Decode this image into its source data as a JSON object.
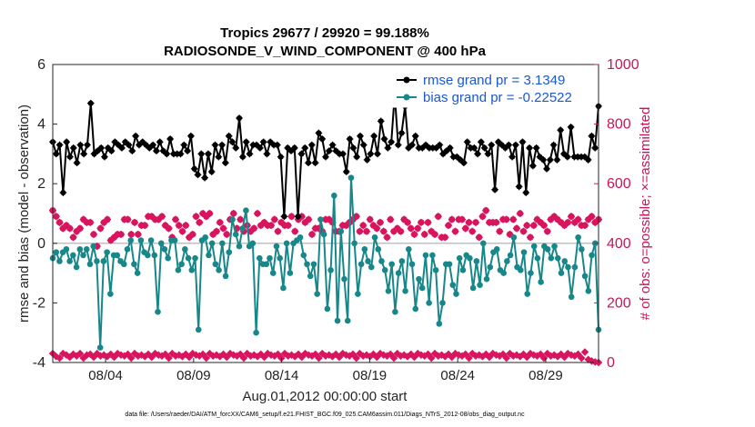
{
  "chart_data": {
    "type": "line",
    "title": "Tropics 29677 / 29920 = 99.188%",
    "subtitle": "RADIOSONDE_V_WIND_COMPONENT @ 400 hPa",
    "xlabel": "Aug.01,2012 00:00:00 start",
    "ylabel_left": "rmse and bias (model - observation)",
    "ylabel_right": "# of obs: o=possible; ×=assimilated",
    "footnote": "data file: /Users/raeder/DAI/ATM_forcXX/CAM6_setup/f.e21.FHIST_BGC.f09_025.CAM6assim.011/Diags_NTrS_2012-08/obs_diag_output.nc",
    "xlim": [
      1,
      32
    ],
    "ylim_left": [
      -4,
      6
    ],
    "ylim_right": [
      0,
      1000
    ],
    "yticks_left": [
      "-4",
      "-2",
      "0",
      "2",
      "4",
      "6"
    ],
    "yticks_right": [
      "0",
      "200",
      "400",
      "600",
      "800",
      "1000"
    ],
    "xticks": [
      {
        "day": 4,
        "label": "08/04"
      },
      {
        "day": 9,
        "label": "08/09"
      },
      {
        "day": 14,
        "label": "08/14"
      },
      {
        "day": 19,
        "label": "08/19"
      },
      {
        "day": 24,
        "label": "08/24"
      },
      {
        "day": 29,
        "label": "08/29"
      }
    ],
    "legend": [
      {
        "name": "rmse grand pr = 3.1349",
        "color": "#000000"
      },
      {
        "name": "bias grand pr = -0.22522",
        "color": "#17878a"
      }
    ],
    "colors": {
      "rmse": "#000000",
      "bias": "#17878a",
      "obs": "#d9155e",
      "zero": "#c0c0c0",
      "right_axis": "#c8155a"
    },
    "series": [
      {
        "name": "rmse",
        "axis": "left",
        "values": [
          3.4,
          3.0,
          3.3,
          1.7,
          3.4,
          2.9,
          3.2,
          2.7,
          3.3,
          3.0,
          3.3,
          4.7,
          3.0,
          3.1,
          3.2,
          2.9,
          3.2,
          3.1,
          3.4,
          3.3,
          3.2,
          3.4,
          3.3,
          3.1,
          3.6,
          3.3,
          3.4,
          3.3,
          3.2,
          3.3,
          3.1,
          3.4,
          3.1,
          3.0,
          3.5,
          3.0,
          3.0,
          3.0,
          3.3,
          3.1,
          3.6,
          2.5,
          2.3,
          3.0,
          2.2,
          3.0,
          2.4,
          3.3,
          2.9,
          3.3,
          2.7,
          3.6,
          3.4,
          3.2,
          4.2,
          2.9,
          3.4,
          3.0,
          3.3,
          3.3,
          3.2,
          3.4,
          3.0,
          3.4,
          3.3,
          3.3,
          2.9,
          0.9,
          3.2,
          3.1,
          3.2,
          0.9,
          3.0,
          3.2,
          2.7,
          3.3,
          2.7,
          3.7,
          3.5,
          2.9,
          3.1,
          3.3,
          3.1,
          3.0,
          3.0,
          2.4,
          3.5,
          3.2,
          2.9,
          3.6,
          3.3,
          2.8,
          3.0,
          3.6,
          3.0,
          4.1,
          3.5,
          3.2,
          3.4,
          5.0,
          3.3,
          3.7,
          4.6,
          3.2,
          3.3,
          3.6,
          3.2,
          3.2,
          3.3,
          3.2,
          3.2,
          3.2,
          3.3,
          3.0,
          3.1,
          3.2,
          2.9,
          2.9,
          2.8,
          2.7,
          3.4,
          3.2,
          3.2,
          3.0,
          3.4,
          3.2,
          3.0,
          3.3,
          1.8,
          3.4,
          3.3,
          3.2,
          3.3,
          2.9,
          3.3,
          1.9,
          3.4,
          1.7,
          3.2,
          2.6,
          3.2,
          2.9,
          2.8,
          2.5,
          2.8,
          3.3,
          2.8,
          3.8,
          3.0,
          2.9,
          3.9,
          2.9,
          2.9,
          2.9,
          2.9,
          2.8,
          3.6,
          3.2,
          4.6
        ]
      },
      {
        "name": "bias",
        "axis": "left",
        "values": [
          -0.5,
          -0.3,
          -0.6,
          -0.3,
          -0.2,
          -0.6,
          -0.4,
          -0.8,
          -0.2,
          -0.4,
          -0.2,
          -0.7,
          -0.1,
          -0.6,
          -3.5,
          -0.6,
          -0.3,
          -1.7,
          -0.4,
          -0.4,
          -0.6,
          -0.7,
          -0.2,
          0.1,
          -0.7,
          -1.0,
          0.1,
          -0.3,
          -0.4,
          0.1,
          -0.4,
          -2.3,
          0.0,
          -0.2,
          -0.5,
          0.1,
          0.1,
          -0.9,
          -0.7,
          -0.2,
          -0.5,
          -0.9,
          -0.5,
          -2.9,
          0.1,
          0.2,
          -0.4,
          0.0,
          -0.7,
          -0.9,
          0.0,
          -1.1,
          -0.3,
          0.8,
          0.3,
          -0.1,
          0.5,
          1.1,
          -0.1,
          0.0,
          -3.0,
          -0.5,
          -0.7,
          -0.7,
          -0.5,
          -1.0,
          -0.1,
          -0.5,
          -1.5,
          0.0,
          -1.0,
          0.0,
          0.1,
          0.2,
          -0.4,
          -0.7,
          -1.1,
          -0.7,
          -1.7,
          0.8,
          0.3,
          -2.2,
          -0.9,
          1.6,
          -2.6,
          0.4,
          -1.2,
          -2.6,
          2.2,
          0.0,
          -1.7,
          -0.7,
          -0.2,
          -0.6,
          -0.8,
          0.2,
          -0.2,
          -0.6,
          -0.9,
          -1.6,
          -0.7,
          -2.3,
          -1.0,
          -0.6,
          -1.6,
          -0.2,
          -0.7,
          -2.2,
          -1.2,
          -1.5,
          -0.4,
          -2.0,
          -0.4,
          -0.9,
          -2.7,
          -2.0,
          -0.7,
          -0.7,
          -1.4,
          -1.7,
          -0.5,
          -0.9,
          -0.4,
          -0.5,
          -1.5,
          -0.6,
          -1.4,
          0.0,
          -1.2,
          -0.8,
          -0.3,
          -0.2,
          -0.9,
          -1.0,
          -0.6,
          -0.4,
          0.2,
          -0.8,
          -0.9,
          -0.3,
          -1.7,
          -1.0,
          -0.1,
          -0.5,
          -1.3,
          -0.1,
          -0.2,
          -0.5,
          -0.1,
          -0.5,
          -1.0,
          -0.6,
          -0.8,
          -1.8,
          -0.8,
          0.2,
          -0.2,
          -1.1,
          -1.6,
          -0.4,
          0.0,
          -2.9
        ]
      },
      {
        "name": "obs_possible",
        "axis": "right",
        "values": [
          510,
          490,
          470,
          450,
          460,
          450,
          420,
          440,
          450,
          480,
          470,
          470,
          430,
          390,
          450,
          470,
          480,
          410,
          420,
          430,
          430,
          480,
          480,
          430,
          470,
          430,
          460,
          460,
          490,
          490,
          480,
          480,
          490,
          460,
          450,
          420,
          480,
          460,
          440,
          460,
          420,
          430,
          490,
          470,
          500,
          490,
          500,
          430,
          440,
          470,
          450,
          430,
          480,
          500,
          450,
          480,
          440,
          460,
          440,
          450,
          500,
          460,
          470,
          460,
          460,
          480,
          440,
          470,
          460,
          460,
          490,
          440,
          480,
          490,
          470,
          480,
          430,
          450,
          450,
          440,
          480,
          480,
          470,
          440,
          440,
          460,
          460,
          470,
          480,
          490,
          440,
          460,
          440,
          480,
          460,
          450,
          470,
          440,
          420,
          480,
          440,
          450,
          440,
          480,
          470,
          450,
          430,
          450,
          470,
          430,
          470,
          440,
          430,
          490,
          420,
          420,
          460,
          480,
          440,
          480,
          480,
          450,
          470,
          440,
          470,
          420,
          490,
          510,
          470,
          470,
          470,
          440,
          480,
          480,
          430,
          480,
          450,
          500,
          440,
          460,
          420,
          460,
          480,
          470,
          460,
          440,
          480,
          490,
          480,
          470,
          460,
          470,
          490,
          470,
          480,
          460,
          460,
          480,
          490,
          470,
          480
        ]
      },
      {
        "name": "obs_assimilated",
        "axis": "right",
        "values": [
          30,
          20,
          15,
          30,
          25,
          18,
          28,
          22,
          30,
          15,
          25,
          28,
          18,
          30,
          22,
          25,
          20,
          28,
          18,
          30,
          25,
          22,
          28,
          15,
          30,
          22,
          25,
          20,
          28,
          18,
          30,
          25,
          22,
          28,
          15,
          30,
          22,
          25,
          20,
          28,
          18,
          30,
          25,
          22,
          28,
          15,
          30,
          22,
          25,
          20,
          28,
          18,
          30,
          25,
          22,
          28,
          15,
          30,
          22,
          25,
          20,
          28,
          18,
          30,
          25,
          22,
          28,
          15,
          30,
          22,
          25,
          20,
          28,
          18,
          30,
          25,
          22,
          28,
          15,
          30,
          22,
          25,
          20,
          28,
          18,
          30,
          25,
          22,
          28,
          15,
          30,
          22,
          25,
          20,
          28,
          18,
          30,
          25,
          22,
          28,
          15,
          30,
          22,
          25,
          20,
          28,
          18,
          30,
          25,
          22,
          28,
          15,
          30,
          22,
          25,
          20,
          28,
          18,
          30,
          25,
          22,
          28,
          15,
          30,
          22,
          25,
          20,
          28,
          18,
          30,
          25,
          22,
          28,
          15,
          30,
          22,
          25,
          20,
          28,
          18,
          30,
          25,
          22,
          28,
          15,
          30,
          22,
          25,
          20,
          28,
          18,
          30,
          25,
          22,
          28,
          15,
          35,
          10,
          5,
          2,
          0
        ]
      }
    ]
  }
}
